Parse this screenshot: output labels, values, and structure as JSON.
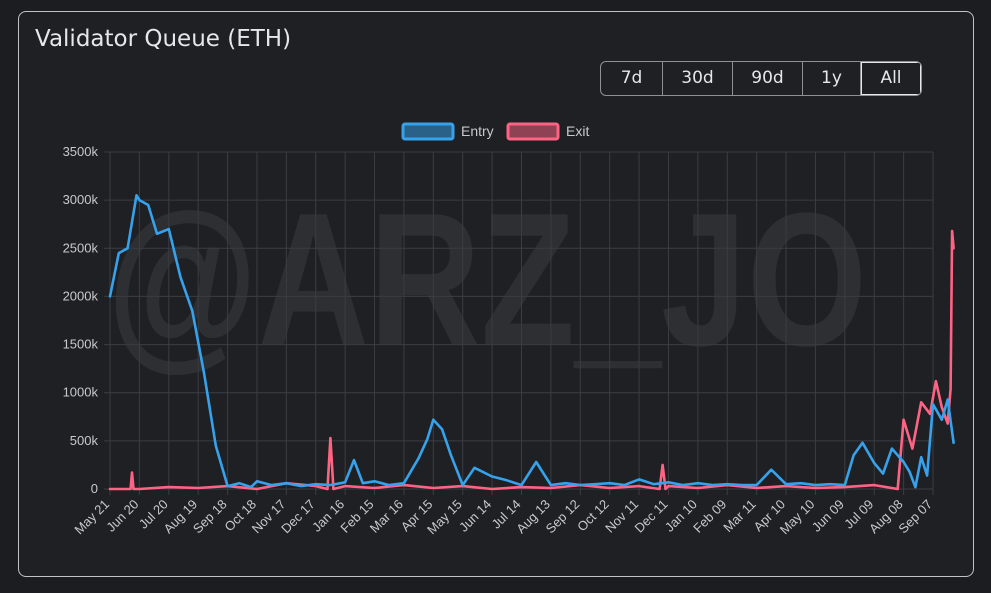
{
  "title": "Validator Queue (ETH)",
  "range_buttons": [
    {
      "label": "7d"
    },
    {
      "label": "30d"
    },
    {
      "label": "90d"
    },
    {
      "label": "1y"
    },
    {
      "label": "All"
    }
  ],
  "active_range": "All",
  "watermark": "@ARZ_JO",
  "colors": {
    "entry": "#36a2eb",
    "exit": "#ff6384",
    "grid": "#3a3d42",
    "tick": "#c7c9cc"
  },
  "chart_data": {
    "type": "line",
    "legend": [
      "Entry",
      "Exit"
    ],
    "legend_position": "top",
    "grid": true,
    "ylim": [
      0,
      3500
    ],
    "y_unit_suffix": "k",
    "y_ticks": [
      "0",
      "500k",
      "1000k",
      "1500k",
      "2000k",
      "2500k",
      "3000k",
      "3500k"
    ],
    "x_tick_labels": [
      "May 21",
      "Jun 20",
      "Jul 20",
      "Aug 19",
      "Sep 18",
      "Oct 18",
      "Nov 17",
      "Dec 17",
      "Jan 16",
      "Feb 15",
      "Mar 16",
      "Apr 15",
      "May 15",
      "Jun 14",
      "Jul 14",
      "Aug 13",
      "Sep 12",
      "Oct 12",
      "Nov 11",
      "Dec 11",
      "Jan 10",
      "Feb 09",
      "Mar 11",
      "Apr 10",
      "May 10",
      "Jun 09",
      "Jul 09",
      "Aug 08",
      "Sep 07"
    ],
    "series": [
      {
        "name": "Entry",
        "x": [
          0,
          0.3,
          0.6,
          0.9,
          1.0,
          1.3,
          1.6,
          2.0,
          2.4,
          2.8,
          3.2,
          3.6,
          4.0,
          4.4,
          4.8,
          5.0,
          5.5,
          6,
          6.5,
          7,
          7.5,
          8,
          8.3,
          8.6,
          9,
          9.5,
          10,
          10.5,
          10.8,
          11,
          11.3,
          11.6,
          12,
          12.4,
          13,
          13.5,
          14,
          14.5,
          15,
          15.5,
          16,
          16.5,
          17,
          17.5,
          18,
          18.5,
          19,
          19.5,
          20,
          20.5,
          21,
          21.5,
          22,
          22.5,
          23,
          23.5,
          24,
          24.5,
          25,
          25.3,
          25.6,
          26,
          26.3,
          26.6,
          27,
          27.2,
          27.4,
          27.6,
          27.8,
          28,
          28.3,
          28.5,
          28.7
        ],
        "values": [
          2000,
          2450,
          2500,
          3050,
          3000,
          2950,
          2650,
          2700,
          2200,
          1850,
          1200,
          450,
          30,
          60,
          20,
          80,
          40,
          60,
          30,
          50,
          40,
          70,
          300,
          60,
          80,
          40,
          60,
          320,
          520,
          720,
          620,
          350,
          40,
          220,
          130,
          90,
          40,
          280,
          40,
          60,
          40,
          50,
          60,
          40,
          100,
          50,
          70,
          40,
          60,
          40,
          50,
          40,
          40,
          200,
          50,
          60,
          40,
          50,
          40,
          350,
          480,
          270,
          160,
          420,
          280,
          180,
          20,
          330,
          140,
          880,
          720,
          930,
          480
        ]
      },
      {
        "name": "Exit",
        "x": [
          0,
          0.7,
          0.75,
          0.8,
          1,
          2,
          3,
          4,
          5,
          6,
          7,
          7.4,
          7.5,
          7.6,
          8,
          9,
          10,
          11,
          12,
          13,
          14,
          15,
          16,
          17,
          18,
          18.7,
          18.8,
          18.9,
          19,
          20,
          21,
          22,
          23,
          24,
          25,
          26,
          26.8,
          27,
          27.3,
          27.6,
          27.9,
          28.1,
          28.3,
          28.5,
          28.6,
          28.65,
          28.7
        ],
        "values": [
          0,
          0,
          170,
          0,
          0,
          20,
          10,
          30,
          0,
          60,
          30,
          0,
          530,
          0,
          30,
          10,
          40,
          10,
          30,
          0,
          20,
          10,
          40,
          10,
          30,
          0,
          250,
          0,
          30,
          10,
          40,
          10,
          30,
          10,
          20,
          40,
          0,
          720,
          420,
          900,
          780,
          1120,
          850,
          680,
          1040,
          2680,
          2500
        ]
      }
    ]
  }
}
